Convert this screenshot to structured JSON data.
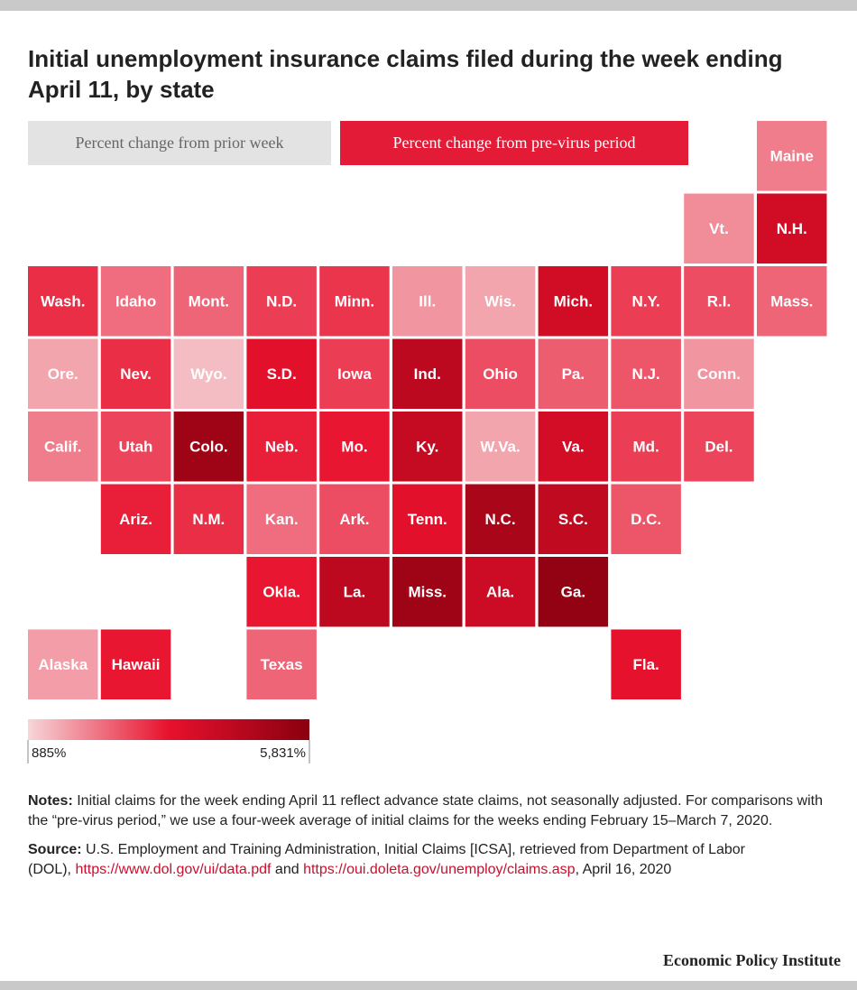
{
  "chart_data": {
    "type": "tile-map",
    "title": "Initial unemployment insurance claims filed during the week ending April 11, by state",
    "tabs": [
      "Percent change from prior week",
      "Percent change from pre-virus period"
    ],
    "tab_colors": [
      "#e3e3e3",
      "#e31b37"
    ],
    "tab_text_colors": [
      "#666666",
      "#ffffff"
    ],
    "categories": [
      "Maine",
      "Vt.",
      "N.H.",
      "Wash.",
      "Idaho",
      "Mont.",
      "N.D.",
      "Minn.",
      "Ill.",
      "Wis.",
      "Mich.",
      "N.Y.",
      "R.I.",
      "Mass.",
      "Ore.",
      "Nev.",
      "Wyo.",
      "S.D.",
      "Iowa",
      "Ind.",
      "Ohio",
      "Pa.",
      "N.J.",
      "Conn.",
      "Calif.",
      "Utah",
      "Colo.",
      "Neb.",
      "Mo.",
      "Ky.",
      "W.Va.",
      "Va.",
      "Md.",
      "Del.",
      "Ariz.",
      "N.M.",
      "Kan.",
      "Ark.",
      "Tenn.",
      "N.C.",
      "S.C.",
      "D.C.",
      "Okla.",
      "La.",
      "Miss.",
      "Ala.",
      "Ga.",
      "Alaska",
      "Hawaii",
      "Texas",
      "Fla."
    ],
    "values": [
      2000,
      1800,
      4000,
      3000,
      2200,
      2300,
      2800,
      2900,
      1700,
      1500,
      4000,
      2800,
      2600,
      2300,
      1500,
      3000,
      1200,
      3500,
      2800,
      4500,
      2600,
      2400,
      2500,
      1700,
      2000,
      2700,
      5300,
      3200,
      3300,
      4300,
      1500,
      3900,
      2800,
      2700,
      3200,
      3000,
      2200,
      2600,
      3500,
      5000,
      4400,
      2500,
      3300,
      4500,
      5300,
      4100,
      5600,
      1600,
      3300,
      2300,
      3400
    ],
    "colorlim": [
      885,
      5831
    ],
    "color_scale": [
      "#f6d6d9",
      "#e8112d",
      "#8a000f"
    ],
    "colorticks": [
      {
        "value": 885,
        "label": "885%"
      },
      {
        "value": 5831,
        "label": "5,831%"
      }
    ],
    "notes": {
      "label": "Notes:",
      "text": "Initial claims for the week ending April 11 reflect advance state claims, not seasonally adjusted. For comparisons with the “pre-virus period,” we use a four-week average of initial claims for the weeks ending February 15–March 7, 2020."
    },
    "source": {
      "label": "Source:",
      "text": "U.S. Employment and Training Administration, Initial Claims [ICSA], retrieved from Department of Labor",
      "text2": "(DOL),",
      "link1": "https://www.dol.gov/ui/data.pdf",
      "and": "and",
      "link2": "https://oui.doleta.gov/unemploy/claims.asp",
      "date": ", April 16, 2020"
    },
    "credit": "Economic Policy Institute"
  }
}
